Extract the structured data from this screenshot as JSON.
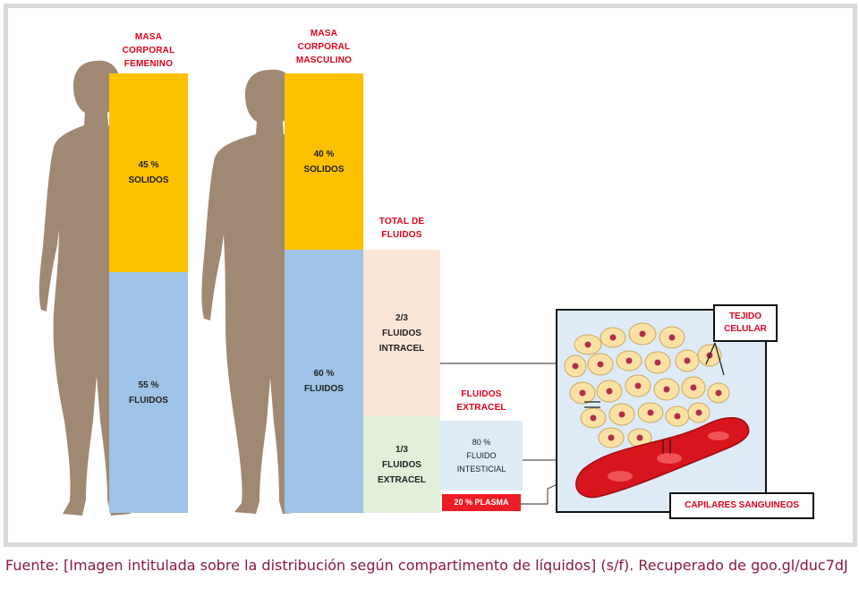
{
  "female": {
    "header": "MASA\nCORPORAL\nFEMENINO",
    "solids": "45 %\nSOLIDOS",
    "fluids": "55 %\nFLUIDOS"
  },
  "male": {
    "header": "MASA\nCORPORAL\nMASCULINO",
    "solids": "40 %\nSOLIDOS",
    "fluids": "60 %\nFLUIDOS"
  },
  "total_fluids": {
    "header": "TOTAL DE\nFLUIDOS",
    "intracel": "2/3\nFLUIDOS\nINTRACEL",
    "extracel": "1/3\nFLUIDOS\nEXTRACEL"
  },
  "extracel_fluids": {
    "header": "FLUIDOS\nEXTRACEL",
    "intersticial": "80 %\nFLUIDO\nINTESTICIAL",
    "plasma": "20 % PLASMA"
  },
  "inset": {
    "tissue_label": "TEJIDO\nCELULAR",
    "capillary_label": "CAPILARES SANGUINEOS"
  },
  "caption": "Fuente: [Imagen intitulada sobre la distribución según compartimento de líquidos] (s/f). Recuperado de goo.gl/duc7dJ",
  "colors": {
    "solids": "#fdc100",
    "fluids": "#9dc3e6",
    "intracel": "#fbe5d6",
    "extracel": "#e2f0d9",
    "intersticial": "#ddebf7",
    "plasma": "#ee1c25",
    "label_red": "#e1001a",
    "silhouette": "#a08872",
    "caption": "#8b1a3a"
  }
}
